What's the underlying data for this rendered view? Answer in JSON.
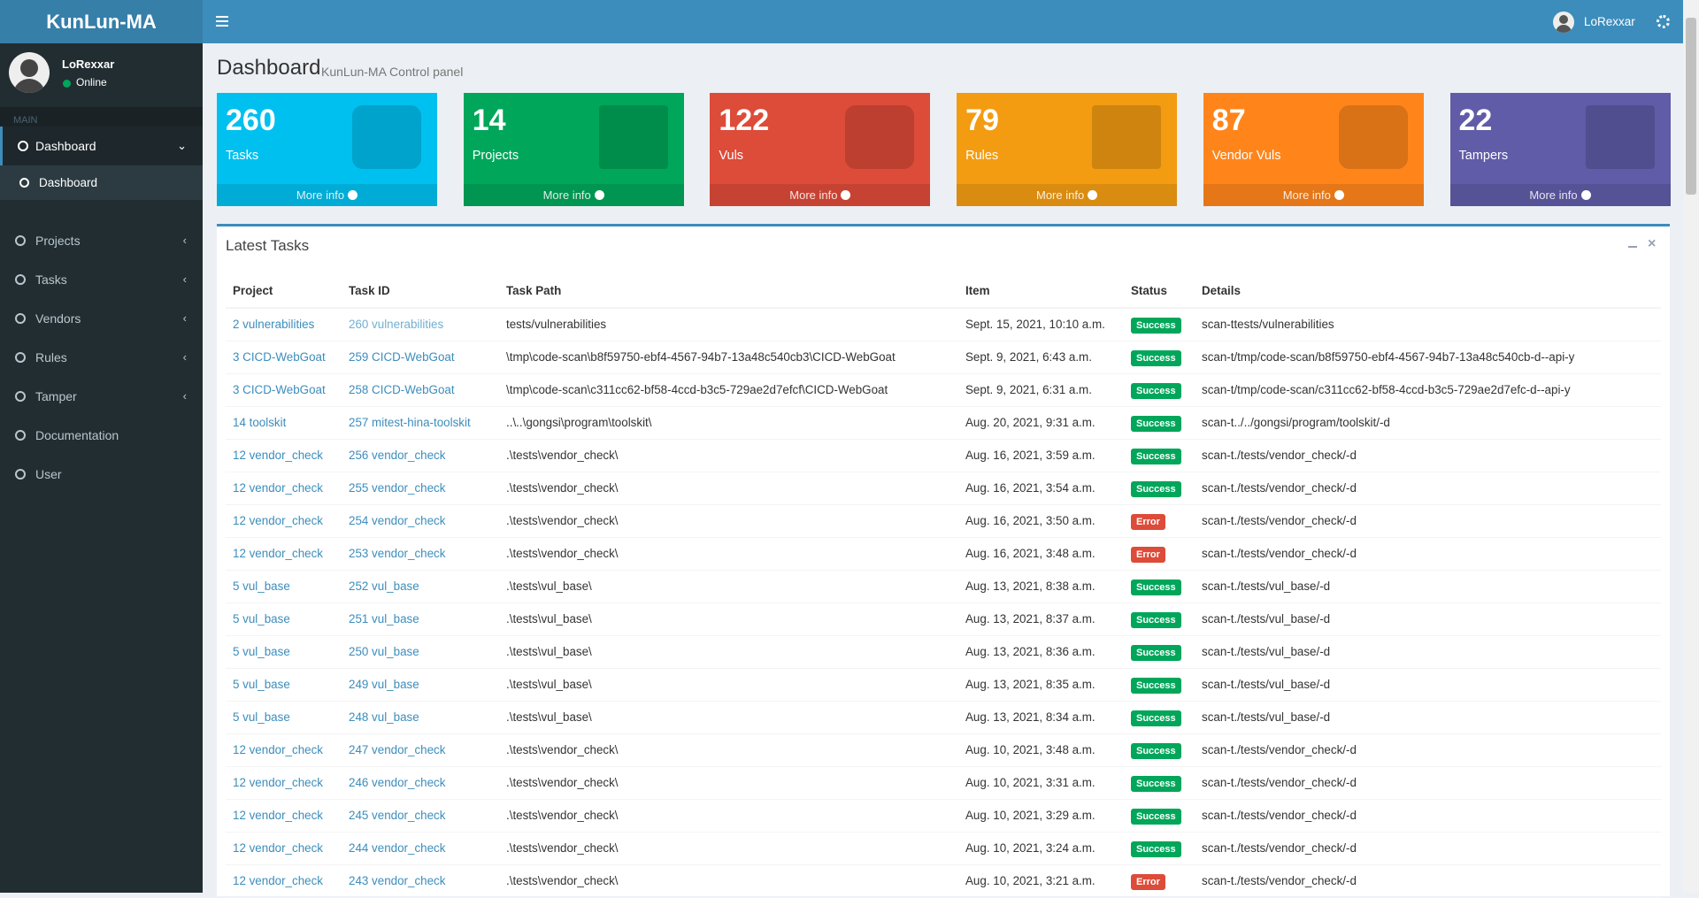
{
  "header": {
    "brand": "KunLun-MA",
    "user": "LoRexxar"
  },
  "sidebar": {
    "user": "LoRexxar",
    "status": "Online",
    "section": "MAIN",
    "menu": [
      "Dashboard",
      "Projects",
      "Tasks",
      "Vendors",
      "Rules",
      "Tamper",
      "Documentation",
      "User"
    ],
    "submenu": "Dashboard"
  },
  "page": {
    "title": "Dashboard",
    "subtitle": "KunLun-MA Control panel"
  },
  "stats": [
    {
      "value": 260,
      "label": "Tasks",
      "more": "More info",
      "color": "#00c0ef"
    },
    {
      "value": 14,
      "label": "Projects",
      "more": "More info",
      "color": "#00a65a"
    },
    {
      "value": 122,
      "label": "Vuls",
      "more": "More info",
      "color": "#dd4b39"
    },
    {
      "value": 79,
      "label": "Rules",
      "more": "More info",
      "color": "#f39c12"
    },
    {
      "value": 87,
      "label": "Vendor Vuls",
      "more": "More info",
      "color": "#ff851b"
    },
    {
      "value": 22,
      "label": "Tampers",
      "more": "More info",
      "color": "#605ca8"
    }
  ],
  "table": {
    "title": "Latest Tasks",
    "columns": [
      "Project",
      "Task ID",
      "Task Path",
      "Item",
      "Status",
      "Details"
    ],
    "rows": [
      [
        "2 vulnerabilities",
        "260 vulnerabilities",
        "tests/vulnerabilities",
        "Sept. 15, 2021, 10:10 a.m.",
        "Success",
        "scan-ttests/vulnerabilities"
      ],
      [
        "3 CICD-WebGoat",
        "259 CICD-WebGoat",
        "\\tmp\\code-scan\\b8f59750-ebf4-4567-94b7-13a48c540cb3\\CICD-WebGoat",
        "Sept. 9, 2021, 6:43 a.m.",
        "Success",
        "scan-t/tmp/code-scan/b8f59750-ebf4-4567-94b7-13a48c540cb-d--api-y"
      ],
      [
        "3 CICD-WebGoat",
        "258 CICD-WebGoat",
        "\\tmp\\code-scan\\c311cc62-bf58-4ccd-b3c5-729ae2d7efcf\\CICD-WebGoat",
        "Sept. 9, 2021, 6:31 a.m.",
        "Success",
        "scan-t/tmp/code-scan/c311cc62-bf58-4ccd-b3c5-729ae2d7efc-d--api-y"
      ],
      [
        "14 toolskit",
        "257 mitest-hina-toolskit",
        "..\\..\\gongsi\\program\\toolskit\\",
        "Aug. 20, 2021, 9:31 a.m.",
        "Success",
        "scan-t../../gongsi/program/toolskit/-d"
      ],
      [
        "12 vendor_check",
        "256 vendor_check",
        ".\\tests\\vendor_check\\",
        "Aug. 16, 2021, 3:59 a.m.",
        "Success",
        "scan-t./tests/vendor_check/-d"
      ],
      [
        "12 vendor_check",
        "255 vendor_check",
        ".\\tests\\vendor_check\\",
        "Aug. 16, 2021, 3:54 a.m.",
        "Success",
        "scan-t./tests/vendor_check/-d"
      ],
      [
        "12 vendor_check",
        "254 vendor_check",
        ".\\tests\\vendor_check\\",
        "Aug. 16, 2021, 3:50 a.m.",
        "Error",
        "scan-t./tests/vendor_check/-d"
      ],
      [
        "12 vendor_check",
        "253 vendor_check",
        ".\\tests\\vendor_check\\",
        "Aug. 16, 2021, 3:48 a.m.",
        "Error",
        "scan-t./tests/vendor_check/-d"
      ],
      [
        "5 vul_base",
        "252 vul_base",
        ".\\tests\\vul_base\\",
        "Aug. 13, 2021, 8:38 a.m.",
        "Success",
        "scan-t./tests/vul_base/-d"
      ],
      [
        "5 vul_base",
        "251 vul_base",
        ".\\tests\\vul_base\\",
        "Aug. 13, 2021, 8:37 a.m.",
        "Success",
        "scan-t./tests/vul_base/-d"
      ],
      [
        "5 vul_base",
        "250 vul_base",
        ".\\tests\\vul_base\\",
        "Aug. 13, 2021, 8:36 a.m.",
        "Success",
        "scan-t./tests/vul_base/-d"
      ],
      [
        "5 vul_base",
        "249 vul_base",
        ".\\tests\\vul_base\\",
        "Aug. 13, 2021, 8:35 a.m.",
        "Success",
        "scan-t./tests/vul_base/-d"
      ],
      [
        "5 vul_base",
        "248 vul_base",
        ".\\tests\\vul_base\\",
        "Aug. 13, 2021, 8:34 a.m.",
        "Success",
        "scan-t./tests/vul_base/-d"
      ],
      [
        "12 vendor_check",
        "247 vendor_check",
        ".\\tests\\vendor_check\\",
        "Aug. 10, 2021, 3:48 a.m.",
        "Success",
        "scan-t./tests/vendor_check/-d"
      ],
      [
        "12 vendor_check",
        "246 vendor_check",
        ".\\tests\\vendor_check\\",
        "Aug. 10, 2021, 3:31 a.m.",
        "Success",
        "scan-t./tests/vendor_check/-d"
      ],
      [
        "12 vendor_check",
        "245 vendor_check",
        ".\\tests\\vendor_check\\",
        "Aug. 10, 2021, 3:29 a.m.",
        "Success",
        "scan-t./tests/vendor_check/-d"
      ],
      [
        "12 vendor_check",
        "244 vendor_check",
        ".\\tests\\vendor_check\\",
        "Aug. 10, 2021, 3:24 a.m.",
        "Success",
        "scan-t./tests/vendor_check/-d"
      ],
      [
        "12 vendor_check",
        "243 vendor_check",
        ".\\tests\\vendor_check\\",
        "Aug. 10, 2021, 3:21 a.m.",
        "Error",
        "scan-t./tests/vendor_check/-d"
      ]
    ]
  }
}
